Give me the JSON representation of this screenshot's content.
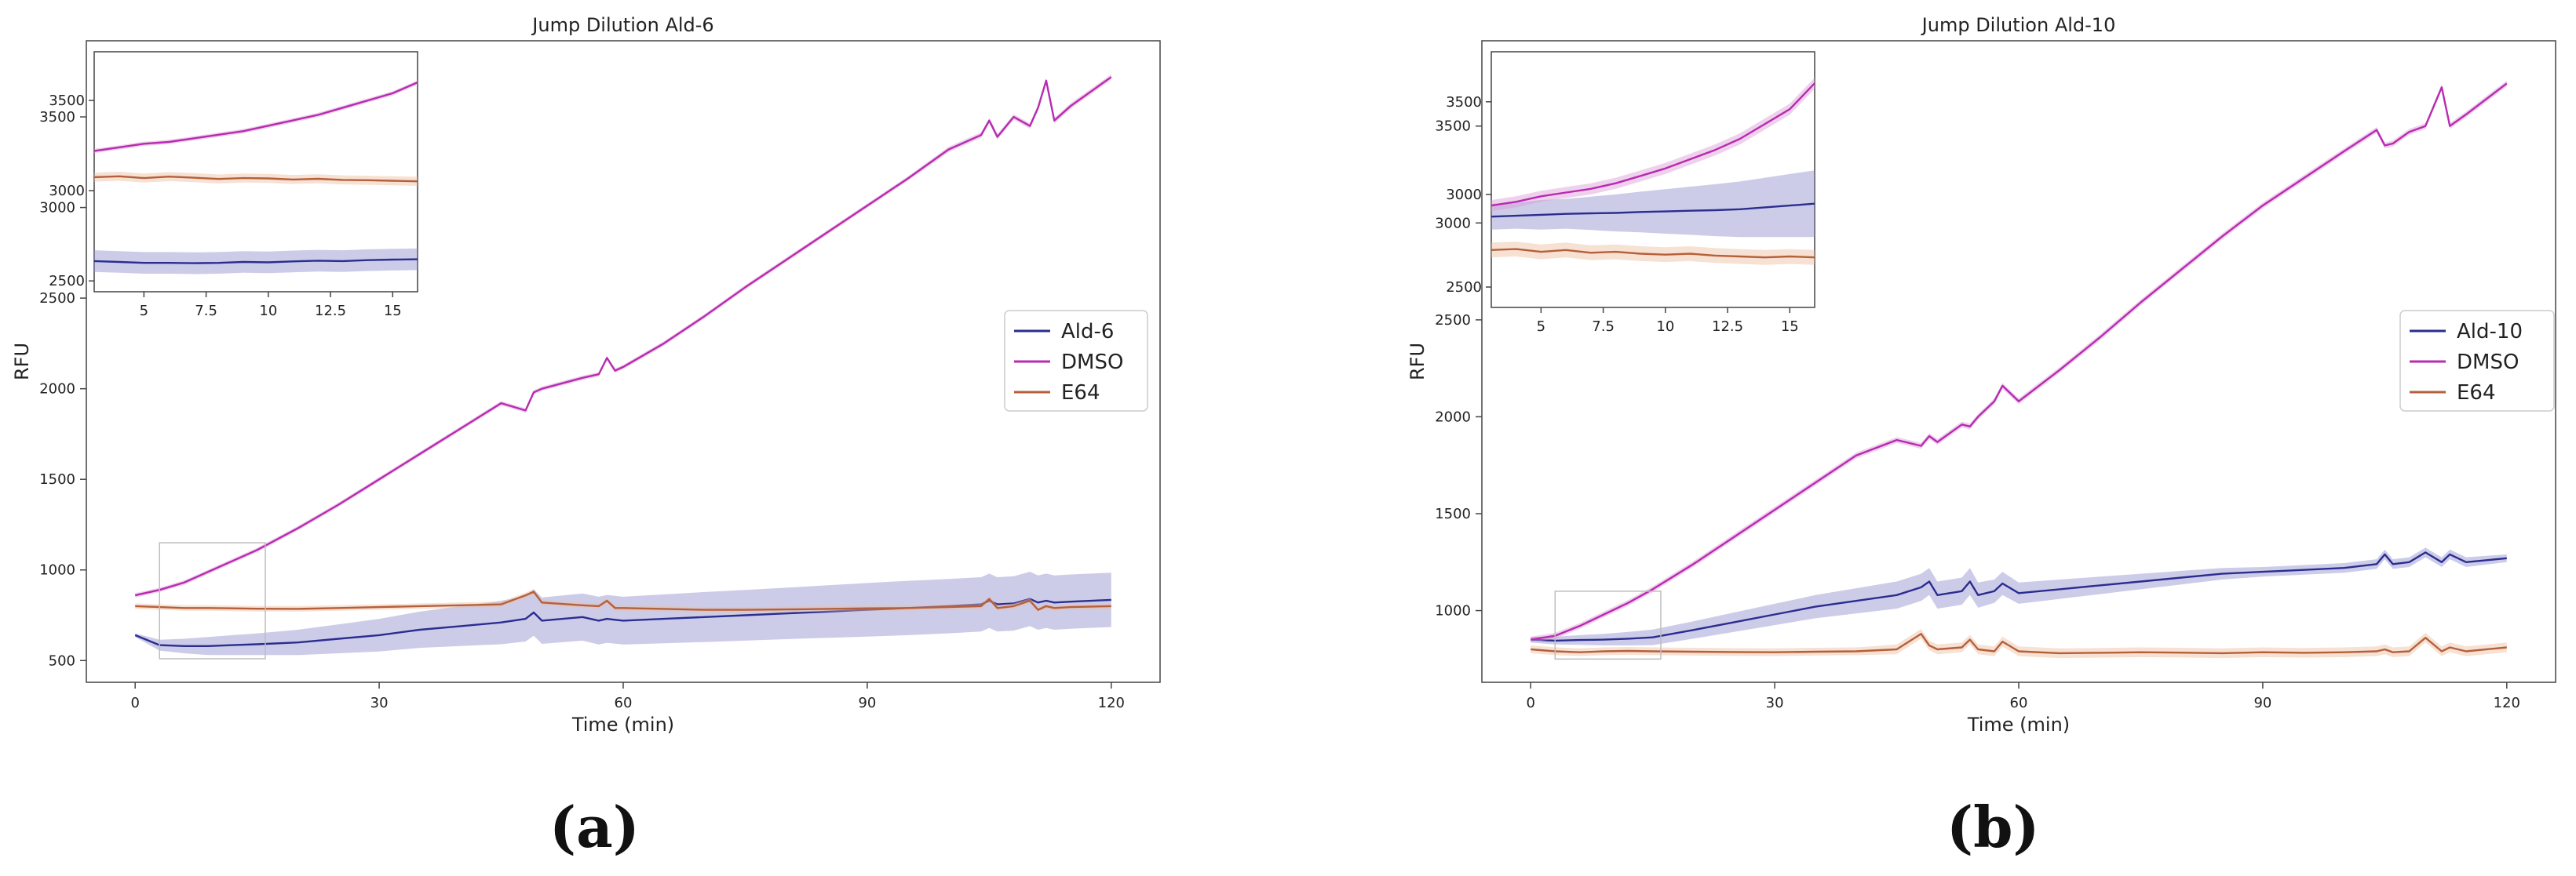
{
  "panel_labels": [
    "(a)",
    "(b)"
  ],
  "chart_data": [
    {
      "type": "line",
      "title": "Jump Dilution Ald-6",
      "xlabel": "Time (min)",
      "ylabel": "RFU",
      "xlim": [
        -6,
        126
      ],
      "ylim": [
        380,
        3920
      ],
      "xticks": [
        0,
        30,
        60,
        90,
        120
      ],
      "yticks": [
        500,
        1000,
        1500,
        2000,
        2500,
        3000,
        3500
      ],
      "legend_position": "center-right",
      "x": [
        0,
        3,
        6,
        9,
        12,
        15,
        20,
        25,
        30,
        35,
        40,
        45,
        48,
        49,
        50,
        55,
        57,
        58,
        59,
        60,
        65,
        70,
        75,
        80,
        85,
        90,
        95,
        100,
        104,
        105,
        106,
        108,
        110,
        111,
        112,
        113,
        115,
        120
      ],
      "series": [
        {
          "name": "Ald-6",
          "color": "#2b2d8f",
          "band_color": "#8e8ecf",
          "band": [
            10,
            30,
            40,
            50,
            55,
            60,
            70,
            80,
            90,
            100,
            110,
            120,
            125,
            128,
            128,
            130,
            132,
            132,
            132,
            132,
            135,
            138,
            140,
            142,
            145,
            148,
            150,
            150,
            150,
            150,
            150,
            150,
            150,
            150,
            150,
            150,
            150,
            150
          ],
          "values": [
            640,
            585,
            580,
            580,
            585,
            590,
            600,
            620,
            640,
            670,
            690,
            710,
            730,
            765,
            720,
            740,
            720,
            730,
            725,
            720,
            730,
            740,
            750,
            760,
            770,
            780,
            790,
            800,
            810,
            830,
            810,
            815,
            840,
            820,
            830,
            820,
            825,
            835
          ]
        },
        {
          "name": "DMSO",
          "color": "#b82bb0",
          "band_color": "#d99ad5",
          "band": [
            12,
            12,
            12,
            12,
            12,
            12,
            12,
            12,
            12,
            12,
            12,
            12,
            12,
            12,
            12,
            12,
            12,
            12,
            12,
            12,
            12,
            12,
            12,
            12,
            12,
            12,
            12,
            15,
            15,
            15,
            15,
            15,
            15,
            15,
            15,
            15,
            15,
            15
          ],
          "values": [
            860,
            890,
            930,
            990,
            1050,
            1110,
            1230,
            1360,
            1500,
            1640,
            1780,
            1920,
            1880,
            1980,
            2000,
            2060,
            2080,
            2170,
            2100,
            2120,
            2250,
            2400,
            2560,
            2710,
            2860,
            3010,
            3160,
            3320,
            3400,
            3480,
            3390,
            3500,
            3450,
            3550,
            3700,
            3480,
            3560,
            3720
          ]
        },
        {
          "name": "E64",
          "color": "#b5603c",
          "band_color": "#ebbd9e",
          "band": [
            15,
            15,
            15,
            15,
            15,
            15,
            15,
            15,
            15,
            15,
            15,
            15,
            15,
            15,
            15,
            15,
            15,
            15,
            15,
            15,
            15,
            15,
            15,
            15,
            15,
            15,
            15,
            15,
            15,
            15,
            15,
            15,
            15,
            15,
            15,
            15,
            15,
            15
          ],
          "values": [
            800,
            795,
            790,
            790,
            788,
            786,
            785,
            790,
            795,
            800,
            805,
            810,
            860,
            880,
            820,
            805,
            800,
            830,
            790,
            790,
            785,
            780,
            780,
            782,
            785,
            788,
            790,
            795,
            800,
            840,
            790,
            800,
            830,
            780,
            800,
            790,
            795,
            800
          ]
        }
      ],
      "inset": {
        "xlim": [
          3,
          16
        ],
        "ylim": [
          2440,
          3770
        ],
        "xticks": [
          5.0,
          7.5,
          10.0,
          12.5,
          15.0
        ],
        "x": [
          3,
          4,
          5,
          6,
          7,
          8,
          9,
          10,
          11,
          12,
          13,
          14,
          15,
          16
        ],
        "series": [
          {
            "name": "Ald-6",
            "values": [
              2610,
              2605,
              2600,
              2600,
              2598,
              2600,
              2605,
              2603,
              2608,
              2612,
              2610,
              2615,
              2618,
              2620
            ],
            "band": [
              60,
              60,
              60,
              60,
              60,
              60,
              60,
              60,
              60,
              60,
              60,
              60,
              60,
              60
            ]
          },
          {
            "name": "DMSO",
            "values": [
              3220,
              3240,
              3260,
              3270,
              3290,
              3310,
              3330,
              3360,
              3390,
              3420,
              3460,
              3500,
              3540,
              3600
            ],
            "band": [
              12,
              12,
              12,
              12,
              12,
              12,
              12,
              12,
              12,
              12,
              12,
              12,
              12,
              12
            ]
          },
          {
            "name": "E64",
            "values": [
              3075,
              3080,
              3070,
              3078,
              3072,
              3065,
              3070,
              3068,
              3062,
              3066,
              3060,
              3058,
              3055,
              3052
            ],
            "band": [
              25,
              25,
              25,
              25,
              25,
              25,
              25,
              25,
              25,
              25,
              25,
              25,
              25,
              25
            ]
          }
        ]
      }
    },
    {
      "type": "line",
      "title": "Jump Dilution Ald-10",
      "xlabel": "Time (min)",
      "ylabel": "RFU",
      "xlim": [
        -6,
        126
      ],
      "ylim": [
        630,
        3940
      ],
      "xticks": [
        0,
        30,
        60,
        90,
        120
      ],
      "yticks": [
        1000,
        1500,
        2000,
        2500,
        3000,
        3500
      ],
      "legend_position": "center-right",
      "x": [
        0,
        3,
        6,
        9,
        12,
        15,
        20,
        25,
        30,
        35,
        40,
        45,
        48,
        49,
        50,
        53,
        54,
        55,
        57,
        58,
        60,
        65,
        70,
        75,
        80,
        85,
        90,
        95,
        100,
        104,
        105,
        106,
        108,
        110,
        112,
        113,
        115,
        120
      ],
      "series": [
        {
          "name": "Ald-10",
          "color": "#2b2d8f",
          "band_color": "#8e8ecf",
          "band": [
            15,
            20,
            25,
            30,
            35,
            40,
            45,
            50,
            55,
            60,
            65,
            70,
            70,
            70,
            70,
            70,
            70,
            65,
            60,
            60,
            55,
            50,
            45,
            40,
            35,
            30,
            25,
            25,
            25,
            25,
            25,
            25,
            25,
            25,
            25,
            25,
            25,
            20
          ],
          "values": [
            850,
            845,
            848,
            850,
            855,
            862,
            900,
            940,
            980,
            1020,
            1050,
            1080,
            1120,
            1150,
            1080,
            1100,
            1150,
            1080,
            1100,
            1140,
            1090,
            1110,
            1130,
            1150,
            1170,
            1190,
            1200,
            1210,
            1220,
            1240,
            1290,
            1240,
            1250,
            1300,
            1250,
            1290,
            1250,
            1270
          ]
        },
        {
          "name": "DMSO",
          "color": "#b82bb0",
          "band_color": "#d99ad5",
          "band": [
            15,
            15,
            15,
            15,
            15,
            15,
            15,
            15,
            15,
            15,
            15,
            15,
            15,
            15,
            15,
            15,
            15,
            15,
            15,
            15,
            15,
            15,
            15,
            15,
            15,
            15,
            15,
            15,
            15,
            15,
            15,
            15,
            15,
            15,
            15,
            15,
            15,
            15
          ],
          "values": [
            850,
            870,
            920,
            980,
            1040,
            1110,
            1240,
            1380,
            1520,
            1660,
            1800,
            1880,
            1850,
            1900,
            1870,
            1960,
            1950,
            2000,
            2080,
            2160,
            2080,
            2240,
            2410,
            2590,
            2760,
            2930,
            3090,
            3230,
            3370,
            3480,
            3400,
            3410,
            3470,
            3500,
            3700,
            3500,
            3560,
            3720
          ]
        },
        {
          "name": "E64",
          "color": "#b5603c",
          "band_color": "#ebbd9e",
          "band": [
            20,
            20,
            20,
            20,
            20,
            20,
            20,
            20,
            20,
            20,
            20,
            25,
            25,
            25,
            25,
            25,
            25,
            25,
            25,
            25,
            25,
            25,
            25,
            25,
            25,
            25,
            25,
            25,
            25,
            25,
            25,
            25,
            25,
            25,
            25,
            25,
            25,
            25
          ],
          "values": [
            800,
            790,
            785,
            790,
            792,
            790,
            788,
            786,
            785,
            788,
            790,
            800,
            880,
            820,
            800,
            810,
            850,
            800,
            790,
            840,
            790,
            780,
            782,
            785,
            783,
            780,
            785,
            782,
            785,
            790,
            800,
            785,
            790,
            860,
            790,
            810,
            790,
            810
          ]
        }
      ],
      "inset": {
        "xlim": [
          3,
          16
        ],
        "ylim": [
          2390,
          3770
        ],
        "xticks": [
          5.0,
          7.5,
          10.0,
          12.5,
          15.0
        ],
        "x": [
          3,
          4,
          5,
          6,
          7,
          8,
          9,
          10,
          11,
          12,
          13,
          14,
          15,
          16
        ],
        "series": [
          {
            "name": "Ald-10",
            "values": [
              2880,
              2885,
              2890,
              2895,
              2898,
              2900,
              2905,
              2908,
              2912,
              2915,
              2920,
              2930,
              2940,
              2950
            ],
            "band": [
              70,
              70,
              80,
              80,
              90,
              100,
              110,
              120,
              130,
              140,
              150,
              160,
              170,
              180
            ]
          },
          {
            "name": "DMSO",
            "values": [
              2940,
              2960,
              2990,
              3010,
              3030,
              3060,
              3100,
              3140,
              3190,
              3240,
              3300,
              3380,
              3460,
              3600
            ],
            "band": [
              30,
              30,
              30,
              30,
              30,
              30,
              30,
              30,
              30,
              30,
              30,
              30,
              30,
              30
            ]
          },
          {
            "name": "E64",
            "values": [
              2700,
              2705,
              2690,
              2700,
              2685,
              2690,
              2680,
              2675,
              2680,
              2670,
              2665,
              2660,
              2665,
              2660
            ],
            "band": [
              40,
              40,
              40,
              40,
              40,
              40,
              40,
              40,
              40,
              40,
              40,
              40,
              40,
              40
            ]
          }
        ]
      }
    }
  ]
}
